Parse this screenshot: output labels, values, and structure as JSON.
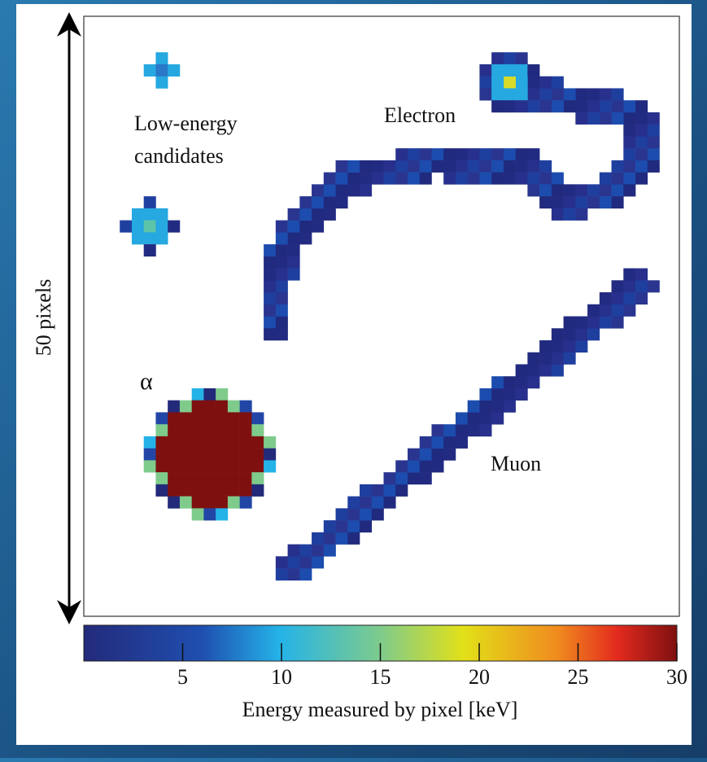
{
  "labels": {
    "low_energy": [
      "Low-energy",
      "candidates"
    ],
    "electron": "Electron",
    "alpha": "α",
    "muon": "Muon"
  },
  "scale_label": "50 pixels",
  "colorbar": {
    "label": "Energy measured by pixel [keV]",
    "lim": [
      0,
      30
    ],
    "ticks": [
      5,
      10,
      15,
      20,
      25,
      30
    ]
  }
}
